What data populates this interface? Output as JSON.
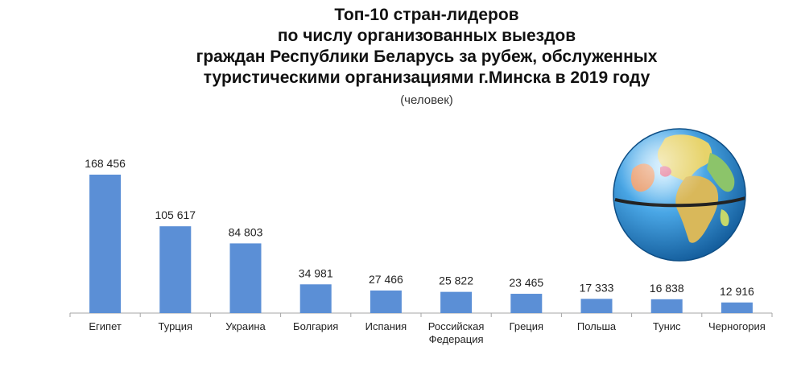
{
  "title_lines": [
    "Топ-10 стран-лидеров",
    "по числу организованных выездов",
    "граждан Республики Беларусь за рубеж,  обслуженных",
    "туристическими организациями г.Минска в 2019 году"
  ],
  "subtitle": "(человек)",
  "colors": {
    "bar": "#5B8FD6",
    "axis": "#A6A6A6"
  },
  "chart_data": {
    "type": "bar",
    "categories": [
      "Египет",
      "Турция",
      "Украина",
      "Болгария",
      "Испания",
      "Российская Федерация",
      "Греция",
      "Польша",
      "Тунис",
      "Черногория"
    ],
    "values": [
      168456,
      105617,
      84803,
      34981,
      27466,
      25822,
      23465,
      17333,
      16838,
      12916
    ],
    "value_labels": [
      "168 456",
      "105 617",
      "84 803",
      "34 981",
      "27 466",
      "25 822",
      "23 465",
      "17 333",
      "16 838",
      "12 916"
    ],
    "ylim": [
      0,
      168456
    ],
    "grid": false,
    "legend": "none"
  }
}
